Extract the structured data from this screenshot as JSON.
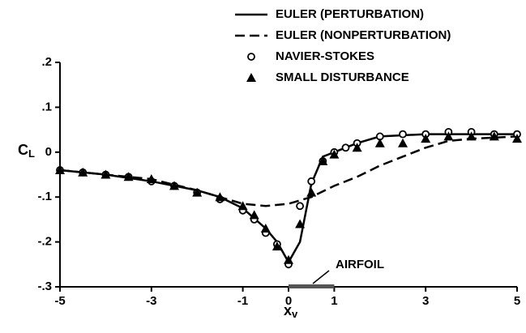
{
  "chart_data": {
    "type": "line",
    "x_label": "xv",
    "y_label": "CL",
    "xlim": [
      -5,
      5
    ],
    "xticks": [
      -5,
      -3,
      -1,
      0,
      1,
      3,
      5
    ],
    "ylim": [
      -0.3,
      0.2
    ],
    "yticks": [
      {
        "value": -0.3,
        "label": "-.3"
      },
      {
        "value": -0.2,
        "label": "-.2"
      },
      {
        "value": -0.1,
        "label": "-.1"
      },
      0,
      {
        "value": 0.1,
        "label": ".1"
      },
      {
        "value": 0.2,
        "label": ".2"
      }
    ],
    "series": [
      {
        "name": "EULER (PERTURBATION)",
        "color": "#000000",
        "line": "solid",
        "marker": "none",
        "x": [
          -5,
          -4,
          -3,
          -2,
          -1.5,
          -1,
          -0.5,
          -0.25,
          0,
          0.25,
          0.5,
          0.75,
          1,
          1.5,
          2,
          3,
          4,
          5
        ],
        "values": [
          -0.04,
          -0.05,
          -0.065,
          -0.085,
          -0.1,
          -0.125,
          -0.17,
          -0.2,
          -0.245,
          -0.2,
          -0.07,
          -0.01,
          0.0,
          0.02,
          0.035,
          0.04,
          0.04,
          0.04
        ]
      },
      {
        "name": "EULER (NONPERTURBATION)",
        "color": "#000000",
        "line": "dashed",
        "marker": "none",
        "x": [
          -5,
          -3,
          -2,
          -1,
          -0.5,
          0,
          0.5,
          1,
          1.5,
          2,
          2.5,
          3,
          3.5,
          4,
          5
        ],
        "values": [
          -0.04,
          -0.06,
          -0.085,
          -0.115,
          -0.12,
          -0.115,
          -0.1,
          -0.075,
          -0.055,
          -0.03,
          -0.01,
          0.01,
          0.025,
          0.03,
          0.035
        ]
      },
      {
        "name": "NAVIER-STOKES",
        "color": "#000000",
        "line": "none",
        "marker": "circle",
        "x": [
          -5,
          -4.5,
          -4,
          -3.5,
          -3,
          -2.5,
          -2,
          -1.5,
          -1,
          -0.75,
          -0.5,
          -0.25,
          0,
          0.25,
          0.5,
          0.75,
          1,
          1.25,
          1.5,
          2,
          2.5,
          3,
          3.5,
          4,
          4.5,
          5
        ],
        "values": [
          -0.04,
          -0.045,
          -0.05,
          -0.055,
          -0.065,
          -0.075,
          -0.09,
          -0.105,
          -0.13,
          -0.15,
          -0.18,
          -0.205,
          -0.25,
          -0.12,
          -0.065,
          -0.02,
          0.0,
          0.01,
          0.02,
          0.035,
          0.04,
          0.04,
          0.045,
          0.045,
          0.04,
          0.04
        ]
      },
      {
        "name": "SMALL DISTURBANCE",
        "color": "#000000",
        "line": "none",
        "marker": "triangle",
        "x": [
          -5,
          -4.5,
          -4,
          -3.5,
          -3,
          -2.5,
          -2,
          -1.5,
          -1,
          -0.75,
          -0.5,
          -0.25,
          0,
          0.25,
          0.5,
          0.75,
          1,
          1.5,
          2,
          2.5,
          3,
          3.5,
          4,
          4.5,
          5
        ],
        "values": [
          -0.04,
          -0.045,
          -0.05,
          -0.055,
          -0.06,
          -0.075,
          -0.09,
          -0.1,
          -0.12,
          -0.14,
          -0.17,
          -0.21,
          -0.24,
          -0.16,
          -0.09,
          -0.02,
          -0.005,
          0.01,
          0.02,
          0.02,
          0.03,
          0.035,
          0.035,
          0.035,
          0.03
        ]
      }
    ],
    "annotations": [
      {
        "text": "AIRFOIL",
        "x": 0,
        "x_end": 1
      }
    ]
  }
}
